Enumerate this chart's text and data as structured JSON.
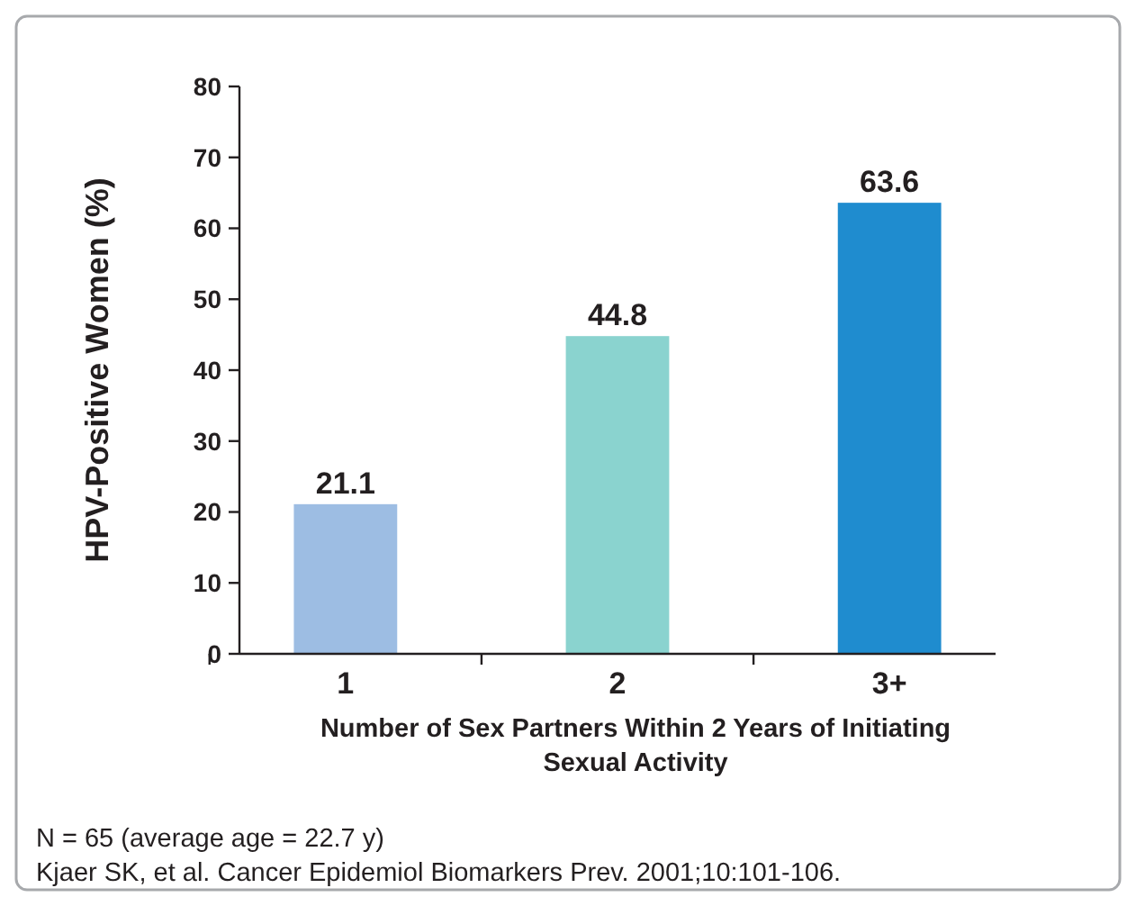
{
  "chart_data": {
    "type": "bar",
    "categories": [
      "1",
      "2",
      "3+"
    ],
    "values": [
      21.1,
      44.8,
      63.6
    ],
    "colors": [
      "#9dbde3",
      "#8ad3cf",
      "#1f8ccf"
    ],
    "ylim": [
      0,
      80
    ],
    "yticks": [
      0,
      10,
      20,
      30,
      40,
      50,
      60,
      70,
      80
    ],
    "ylabel": "HPV-Positive Women (%)",
    "xlabel": "Number of Sex Partners Within 2 Years of Initiating Sexual Activity",
    "data_labels": true,
    "annotations": [
      "N = 65 (average age = 22.7 y)",
      "Kjaer SK, et al. Cancer Epidemiol Biomarkers Prev. 2001;10:101-106."
    ]
  }
}
